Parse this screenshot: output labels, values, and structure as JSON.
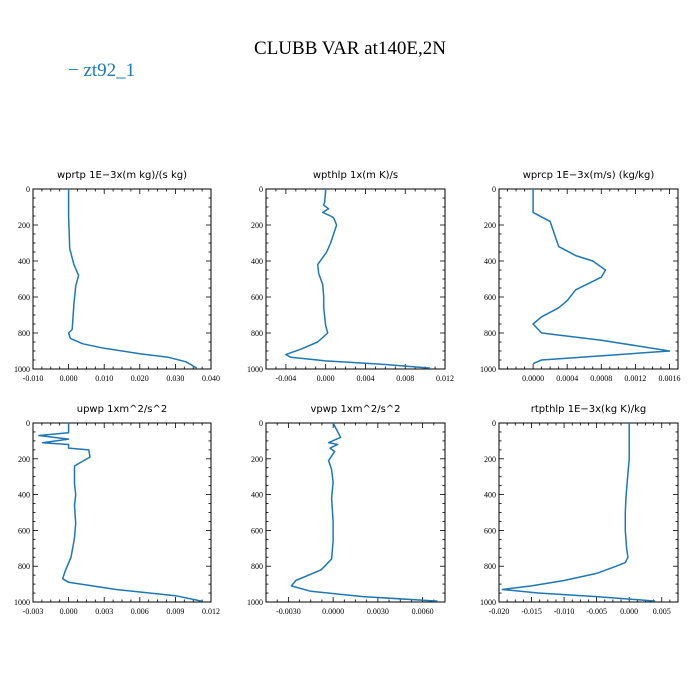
{
  "figure": {
    "title": "CLUBB VAR at140E,2N",
    "legend": "− zt92_1",
    "series_color": "#1f77b4"
  },
  "chart_data": [
    {
      "type": "line",
      "title": "wprtp   1E−3x(m kg)/(s kg)",
      "xlim": [
        -0.01,
        0.04
      ],
      "ylim": [
        1000,
        0
      ],
      "xticks": [
        "-0.010",
        "0.000",
        "0.010",
        "0.020",
        "0.030",
        "0.040"
      ],
      "yticks": [
        "0",
        "200",
        "400",
        "600",
        "800",
        "1000"
      ],
      "series": [
        {
          "x": [
            0.0,
            0.0,
            0.0003,
            0.0015,
            0.0028,
            0.002,
            0.0015,
            0.0012,
            0.001,
            0.0,
            0.0005,
            0.004,
            0.01,
            0.02,
            0.028,
            0.033,
            0.036
          ],
          "y": [
            0,
            150,
            330,
            420,
            480,
            540,
            640,
            720,
            780,
            800,
            830,
            860,
            885,
            915,
            935,
            960,
            995
          ]
        }
      ]
    },
    {
      "type": "line",
      "title": "wpthlp   1x(m K)/s",
      "xlim": [
        -0.006,
        0.012
      ],
      "ylim": [
        1000,
        0
      ],
      "xticks": [
        "-0.004",
        "0.000",
        "0.004",
        "0.008",
        "0.012"
      ],
      "yticks": [
        "0",
        "200",
        "400",
        "600",
        "800",
        "1000"
      ],
      "series": [
        {
          "x": [
            0.0,
            -0.0001,
            -0.0002,
            0.0003,
            -0.0003,
            0.0005,
            0.0008,
            0.0011,
            0.0008,
            0.0005,
            0.0001,
            -0.0008,
            -0.0007,
            -0.0003,
            -0.0002,
            -0.0002,
            0.0,
            0.0002,
            -0.0008,
            -0.0025,
            -0.004,
            -0.0035,
            0.0,
            0.006,
            0.0105
          ],
          "y": [
            0,
            70,
            90,
            110,
            130,
            150,
            160,
            200,
            250,
            300,
            350,
            420,
            470,
            530,
            600,
            660,
            760,
            800,
            850,
            890,
            920,
            935,
            955,
            975,
            995
          ]
        }
      ]
    },
    {
      "type": "line",
      "title": "wprcp   1E−3x(m/s) (kg/kg)",
      "xlim": [
        -0.0004,
        0.0017
      ],
      "ylim": [
        1000,
        0
      ],
      "xticks": [
        "0.0000",
        "0.0004",
        "0.0008",
        "0.0012",
        "0.0016"
      ],
      "yticks": [
        "0",
        "200",
        "400",
        "600",
        "800",
        "1000"
      ],
      "series": [
        {
          "x": [
            0.0,
            0.0,
            0.0002,
            0.0003,
            0.0005,
            0.0007,
            0.00085,
            0.0008,
            0.0005,
            0.0004,
            0.0003,
            0.0001,
            0.0,
            0.0001,
            0.0008,
            0.0016,
            0.001,
            0.0001,
            0.0
          ],
          "y": [
            0,
            130,
            180,
            320,
            370,
            400,
            450,
            490,
            560,
            620,
            660,
            710,
            750,
            800,
            840,
            900,
            920,
            950,
            970
          ]
        }
      ]
    },
    {
      "type": "line",
      "title": "upwp   1xm^2/s^2",
      "xlim": [
        -0.003,
        0.012
      ],
      "ylim": [
        1000,
        0
      ],
      "xticks": [
        "-0.003",
        "0.000",
        "0.003",
        "0.006",
        "0.009",
        "0.012"
      ],
      "yticks": [
        "0",
        "200",
        "400",
        "600",
        "800",
        "1000"
      ],
      "series": [
        {
          "x": [
            0.0,
            0.0,
            -0.0025,
            0.0,
            -0.0022,
            0.0,
            0.0,
            0.0017,
            0.0018,
            0.0005,
            0.0005,
            0.0006,
            0.0005,
            0.0006,
            0.0005,
            0.0004,
            0.0002,
            -0.0003,
            -0.0005,
            0.0,
            0.004,
            0.009,
            0.0112
          ],
          "y": [
            0,
            55,
            70,
            90,
            110,
            120,
            140,
            150,
            190,
            240,
            340,
            400,
            460,
            560,
            640,
            680,
            750,
            830,
            870,
            890,
            930,
            965,
            995
          ]
        }
      ]
    },
    {
      "type": "line",
      "title": "vpwp   1xm^2/s^2",
      "xlim": [
        -0.0045,
        0.0075
      ],
      "ylim": [
        1000,
        0
      ],
      "xticks": [
        "-0.0030",
        "0.0000",
        "0.0030",
        "0.0060"
      ],
      "yticks": [
        "0",
        "200",
        "400",
        "600",
        "800",
        "1000"
      ],
      "series": [
        {
          "x": [
            0.0,
            0.0005,
            -0.0003,
            0.0003,
            -0.0002,
            0.0001,
            -0.0003,
            -0.0001,
            0.0,
            -0.0001,
            0.0,
            0.0,
            -0.0001,
            -0.0008,
            -0.0025,
            -0.0028,
            -0.0015,
            0.002,
            0.007
          ],
          "y": [
            0,
            80,
            110,
            120,
            140,
            160,
            210,
            260,
            330,
            420,
            550,
            660,
            760,
            820,
            880,
            910,
            940,
            970,
            995
          ]
        }
      ]
    },
    {
      "type": "line",
      "title": "rtpthlp   1E−3x(kg K)/kg",
      "xlim": [
        -0.02,
        0.0075
      ],
      "ylim": [
        1000,
        0
      ],
      "xticks": [
        "-0.020",
        "-0.015",
        "-0.010",
        "-0.005",
        "0.000",
        "0.005"
      ],
      "yticks": [
        "0",
        "200",
        "400",
        "600",
        "800",
        "1000"
      ],
      "series": [
        {
          "x": [
            0.0,
            0.0,
            -0.0003,
            -0.0005,
            -0.0006,
            -0.0006,
            -0.0004,
            -0.0002,
            -0.0006,
            -0.002,
            -0.005,
            -0.01,
            -0.015,
            -0.0195,
            -0.014,
            -0.005,
            0.004
          ],
          "y": [
            0,
            200,
            330,
            420,
            500,
            600,
            700,
            750,
            780,
            800,
            840,
            880,
            910,
            930,
            950,
            970,
            995
          ]
        }
      ]
    }
  ]
}
